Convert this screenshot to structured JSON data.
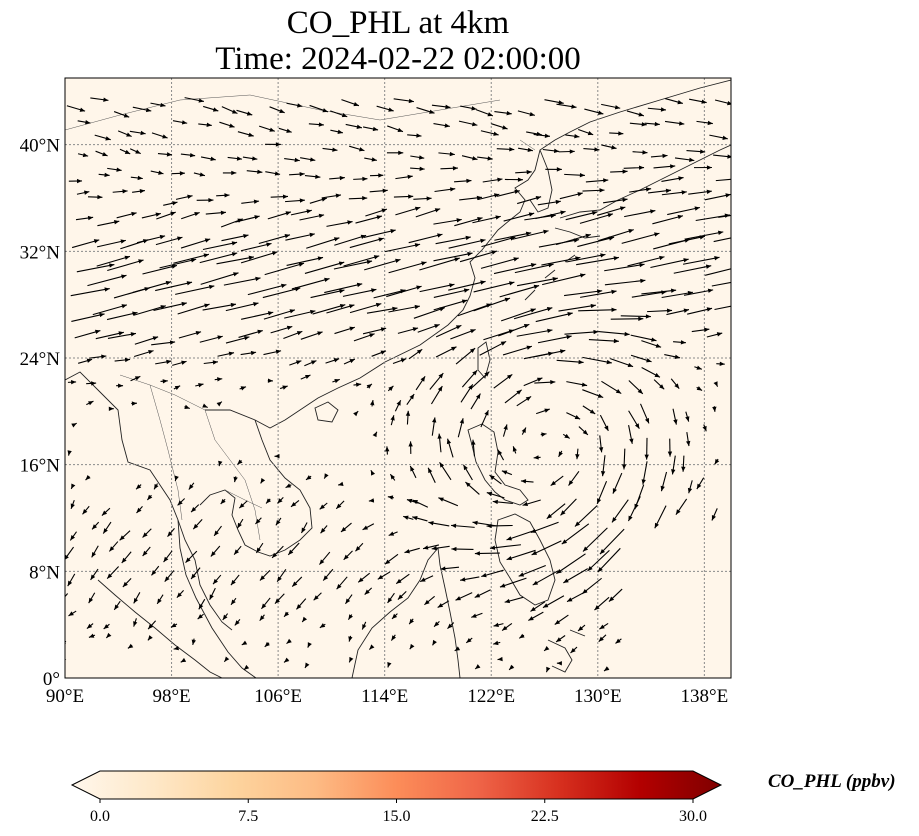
{
  "title_line1": "CO_PHL at 4km",
  "title_line2": "Time: 2024-02-22 02:00:00",
  "map": {
    "extent": {
      "lon_min": 90,
      "lon_max": 140,
      "lat_min": 0,
      "lat_max": 45
    },
    "background_color": "#fff6ea",
    "gridlines": true,
    "lat_ticks": [
      "0°",
      "8°N",
      "16°N",
      "24°N",
      "32°N",
      "40°N"
    ],
    "lat_values": [
      0,
      8,
      16,
      24,
      32,
      40
    ],
    "lon_ticks": [
      "90°E",
      "98°E",
      "106°E",
      "114°E",
      "122°E",
      "130°E",
      "138°E"
    ],
    "lon_values": [
      90,
      98,
      106,
      114,
      122,
      130,
      138
    ]
  },
  "colorbar": {
    "label": "CO_PHL (ppbv)",
    "ticks": [
      "0.0",
      "7.5",
      "15.0",
      "22.5",
      "30.0"
    ],
    "tick_values": [
      0,
      7.5,
      15,
      22.5,
      30
    ],
    "vmin": 0,
    "vmax": 30,
    "colormap": [
      "#fff7ec",
      "#fee8c8",
      "#fdd49e",
      "#fdbb84",
      "#fc8d59",
      "#ef6548",
      "#d7301f",
      "#b30000",
      "#7f0000"
    ],
    "extend": "both"
  }
}
